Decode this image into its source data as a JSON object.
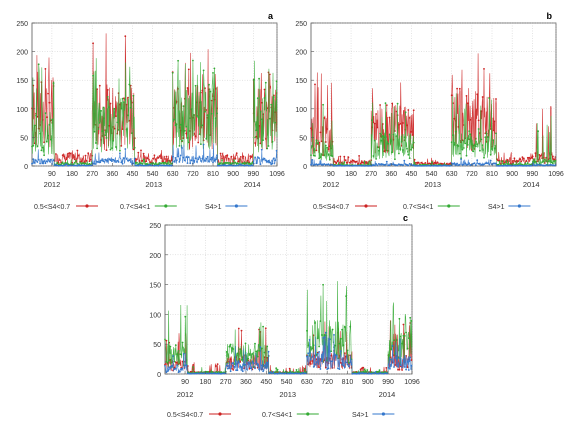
{
  "chart_data": [
    {
      "panel": "a",
      "type": "line",
      "title": "",
      "xlabel": "",
      "ylabel": "",
      "xlim": [
        1,
        1096
      ],
      "ylim": [
        0,
        250
      ],
      "x_ticks": [
        90,
        180,
        270,
        360,
        450,
        540,
        630,
        720,
        810,
        900,
        990,
        1096
      ],
      "y_ticks": [
        0,
        50,
        100,
        150,
        200,
        250
      ],
      "year_labels": [
        "2012",
        "2013",
        "2014"
      ],
      "grid": true,
      "legend_position": "bottom",
      "series": [
        {
          "name": "0.5<S4<0.7",
          "color": "#cc2222",
          "segments": [
            {
              "x0": 1,
              "x1": 100,
              "level": 120,
              "peak": 195
            },
            {
              "x0": 100,
              "x1": 270,
              "level": 18,
              "peak": 30
            },
            {
              "x0": 270,
              "x1": 460,
              "level": 110,
              "peak": 240
            },
            {
              "x0": 460,
              "x1": 630,
              "level": 15,
              "peak": 28
            },
            {
              "x0": 630,
              "x1": 830,
              "level": 110,
              "peak": 210
            },
            {
              "x0": 830,
              "x1": 990,
              "level": 15,
              "peak": 25
            },
            {
              "x0": 990,
              "x1": 1096,
              "level": 110,
              "peak": 175
            }
          ]
        },
        {
          "name": "0.7<S4<1",
          "color": "#33aa33",
          "segments": [
            {
              "x0": 1,
              "x1": 100,
              "level": 75,
              "peak": 180
            },
            {
              "x0": 100,
              "x1": 270,
              "level": 5,
              "peak": 12
            },
            {
              "x0": 270,
              "x1": 460,
              "level": 95,
              "peak": 190
            },
            {
              "x0": 460,
              "x1": 630,
              "level": 5,
              "peak": 12
            },
            {
              "x0": 630,
              "x1": 830,
              "level": 110,
              "peak": 190
            },
            {
              "x0": 830,
              "x1": 990,
              "level": 5,
              "peak": 12
            },
            {
              "x0": 990,
              "x1": 1096,
              "level": 95,
              "peak": 185
            }
          ]
        },
        {
          "name": "S4>1",
          "color": "#3377cc",
          "segments": [
            {
              "x0": 1,
              "x1": 100,
              "level": 10,
              "peak": 30
            },
            {
              "x0": 100,
              "x1": 270,
              "level": 1,
              "peak": 3
            },
            {
              "x0": 270,
              "x1": 460,
              "level": 12,
              "peak": 30
            },
            {
              "x0": 460,
              "x1": 630,
              "level": 1,
              "peak": 3
            },
            {
              "x0": 630,
              "x1": 830,
              "level": 15,
              "peak": 40
            },
            {
              "x0": 830,
              "x1": 990,
              "level": 1,
              "peak": 3
            },
            {
              "x0": 990,
              "x1": 1096,
              "level": 12,
              "peak": 30
            }
          ]
        }
      ]
    },
    {
      "panel": "b",
      "type": "line",
      "title": "",
      "xlabel": "",
      "ylabel": "",
      "xlim": [
        1,
        1096
      ],
      "ylim": [
        0,
        250
      ],
      "x_ticks": [
        90,
        180,
        270,
        360,
        450,
        540,
        630,
        720,
        810,
        900,
        990,
        1096
      ],
      "y_ticks": [
        0,
        50,
        100,
        150,
        200,
        250
      ],
      "year_labels": [
        "2012",
        "2013",
        "2014"
      ],
      "grid": true,
      "legend_position": "bottom",
      "series": [
        {
          "name": "0.5<S4<0.7",
          "color": "#cc2222",
          "segments": [
            {
              "x0": 1,
              "x1": 100,
              "level": 70,
              "peak": 165
            },
            {
              "x0": 100,
              "x1": 270,
              "level": 8,
              "peak": 20
            },
            {
              "x0": 270,
              "x1": 460,
              "level": 85,
              "peak": 175
            },
            {
              "x0": 460,
              "x1": 630,
              "level": 5,
              "peak": 15
            },
            {
              "x0": 630,
              "x1": 830,
              "level": 105,
              "peak": 205
            },
            {
              "x0": 830,
              "x1": 990,
              "level": 12,
              "peak": 25
            },
            {
              "x0": 990,
              "x1": 1096,
              "level": 20,
              "peak": 110
            }
          ]
        },
        {
          "name": "0.7<S4<1",
          "color": "#33aa33",
          "segments": [
            {
              "x0": 1,
              "x1": 100,
              "level": 35,
              "peak": 110
            },
            {
              "x0": 100,
              "x1": 270,
              "level": 2,
              "peak": 8
            },
            {
              "x0": 270,
              "x1": 460,
              "level": 45,
              "peak": 115
            },
            {
              "x0": 460,
              "x1": 630,
              "level": 2,
              "peak": 8
            },
            {
              "x0": 630,
              "x1": 830,
              "level": 50,
              "peak": 130
            },
            {
              "x0": 830,
              "x1": 990,
              "level": 3,
              "peak": 10
            },
            {
              "x0": 990,
              "x1": 1096,
              "level": 10,
              "peak": 95
            }
          ]
        },
        {
          "name": "S4>1",
          "color": "#3377cc",
          "segments": [
            {
              "x0": 1,
              "x1": 100,
              "level": 3,
              "peak": 12
            },
            {
              "x0": 100,
              "x1": 270,
              "level": 0.5,
              "peak": 2
            },
            {
              "x0": 270,
              "x1": 460,
              "level": 3,
              "peak": 10
            },
            {
              "x0": 460,
              "x1": 630,
              "level": 0.5,
              "peak": 2
            },
            {
              "x0": 630,
              "x1": 830,
              "level": 4,
              "peak": 12
            },
            {
              "x0": 830,
              "x1": 990,
              "level": 0.5,
              "peak": 2
            },
            {
              "x0": 990,
              "x1": 1096,
              "level": 2,
              "peak": 8
            }
          ]
        }
      ]
    },
    {
      "panel": "c",
      "type": "line",
      "title": "",
      "xlabel": "",
      "ylabel": "",
      "xlim": [
        1,
        1096
      ],
      "ylim": [
        0,
        250
      ],
      "x_ticks": [
        90,
        180,
        270,
        360,
        450,
        540,
        630,
        720,
        810,
        900,
        990,
        1096
      ],
      "y_ticks": [
        0,
        50,
        100,
        150,
        200,
        250
      ],
      "year_labels": [
        "2012",
        "2013",
        "2014"
      ],
      "grid": true,
      "legend_position": "bottom",
      "series": [
        {
          "name": "0.5<S4<0.7",
          "color": "#cc2222",
          "segments": [
            {
              "x0": 1,
              "x1": 100,
              "level": 20,
              "peak": 70
            },
            {
              "x0": 100,
              "x1": 270,
              "level": 3,
              "peak": 20
            },
            {
              "x0": 270,
              "x1": 460,
              "level": 25,
              "peak": 80
            },
            {
              "x0": 460,
              "x1": 630,
              "level": 3,
              "peak": 15
            },
            {
              "x0": 630,
              "x1": 830,
              "level": 30,
              "peak": 90
            },
            {
              "x0": 830,
              "x1": 990,
              "level": 3,
              "peak": 12
            },
            {
              "x0": 990,
              "x1": 1096,
              "level": 25,
              "peak": 95
            }
          ]
        },
        {
          "name": "0.7<S4<1",
          "color": "#33aa33",
          "segments": [
            {
              "x0": 1,
              "x1": 100,
              "level": 45,
              "peak": 120
            },
            {
              "x0": 100,
              "x1": 270,
              "level": 3,
              "peak": 12
            },
            {
              "x0": 270,
              "x1": 460,
              "level": 40,
              "peak": 100
            },
            {
              "x0": 460,
              "x1": 630,
              "level": 3,
              "peak": 10
            },
            {
              "x0": 630,
              "x1": 830,
              "level": 70,
              "peak": 160
            },
            {
              "x0": 830,
              "x1": 990,
              "level": 3,
              "peak": 8
            },
            {
              "x0": 990,
              "x1": 1096,
              "level": 55,
              "peak": 120
            }
          ]
        },
        {
          "name": "S4>1",
          "color": "#3377cc",
          "segments": [
            {
              "x0": 1,
              "x1": 100,
              "level": 12,
              "peak": 40
            },
            {
              "x0": 100,
              "x1": 270,
              "level": 1,
              "peak": 5
            },
            {
              "x0": 270,
              "x1": 460,
              "level": 18,
              "peak": 50
            },
            {
              "x0": 460,
              "x1": 630,
              "level": 1,
              "peak": 4
            },
            {
              "x0": 630,
              "x1": 830,
              "level": 30,
              "peak": 70
            },
            {
              "x0": 830,
              "x1": 990,
              "level": 1,
              "peak": 4
            },
            {
              "x0": 990,
              "x1": 1096,
              "level": 25,
              "peak": 60
            }
          ]
        }
      ]
    }
  ]
}
